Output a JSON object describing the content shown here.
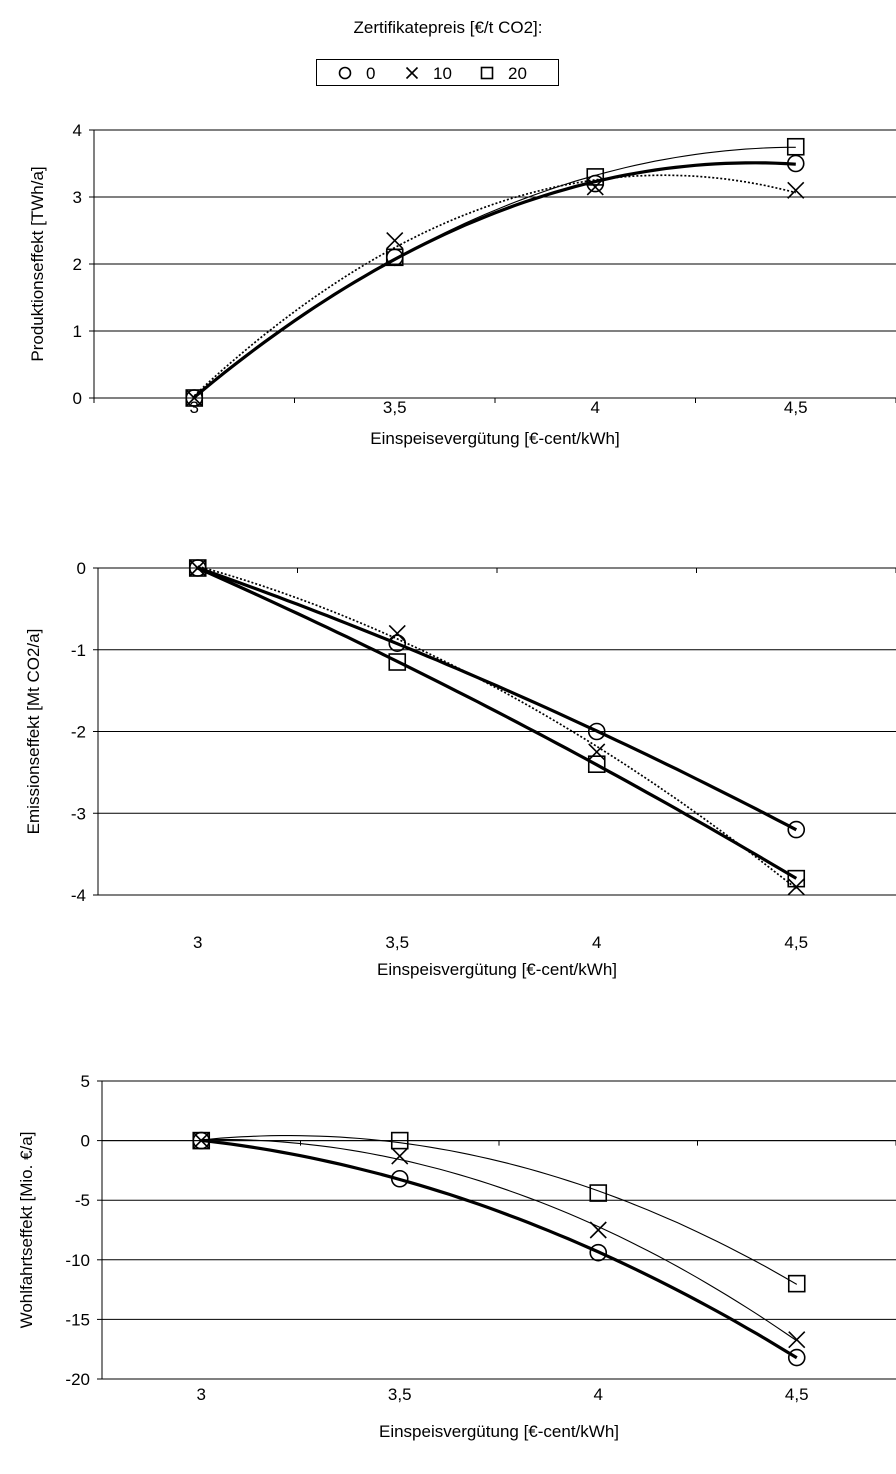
{
  "legend": {
    "title": "Zertifikatepreis [€/t CO2]:",
    "entries": [
      {
        "label": "0",
        "marker": "circle"
      },
      {
        "label": "10",
        "marker": "cross"
      },
      {
        "label": "20",
        "marker": "square"
      }
    ]
  },
  "chart_data": [
    {
      "type": "scatter",
      "xlabel": "Einspeisevergütung  [€-cent/kWh]",
      "ylabel": "Produktionseffekt [TWh/a]",
      "x": [
        3,
        3.5,
        4,
        4.5
      ],
      "xticklabels": [
        "3",
        "3,5",
        "4",
        "4,5"
      ],
      "xlim": [
        2.75,
        4.75
      ],
      "ylim": [
        0,
        4
      ],
      "yticks": [
        0,
        1,
        2,
        3,
        4
      ],
      "grid": "horizontal",
      "series": [
        {
          "name": "0",
          "marker": "circle",
          "values": [
            0,
            2.1,
            3.2,
            3.5
          ],
          "trendline": "thick solid"
        },
        {
          "name": "10",
          "marker": "cross",
          "values": [
            0,
            2.35,
            3.15,
            3.1
          ],
          "trendline": "dotted"
        },
        {
          "name": "20",
          "marker": "square",
          "values": [
            0,
            2.1,
            3.3,
            3.75
          ],
          "trendline": "thin solid"
        }
      ]
    },
    {
      "type": "scatter",
      "xlabel": "Einspeisvergütung  [€-cent/kWh]",
      "ylabel": "Emissionseffekt [Mt CO2/a]",
      "x": [
        3,
        3.5,
        4,
        4.5
      ],
      "xticklabels": [
        "3",
        "3,5",
        "4",
        "4,5"
      ],
      "xlim": [
        2.75,
        4.75
      ],
      "ylim": [
        -4,
        0
      ],
      "yticks": [
        0,
        -1,
        -2,
        -3,
        -4
      ],
      "grid": "horizontal",
      "series": [
        {
          "name": "0",
          "marker": "circle",
          "values": [
            0,
            -0.92,
            -2.0,
            -3.2
          ],
          "trendline": "thick solid"
        },
        {
          "name": "10",
          "marker": "cross",
          "values": [
            0,
            -0.8,
            -2.25,
            -3.9
          ],
          "trendline": "dotted"
        },
        {
          "name": "20",
          "marker": "square",
          "values": [
            0,
            -1.15,
            -2.4,
            -3.8
          ],
          "trendline": "thick solid"
        }
      ]
    },
    {
      "type": "scatter",
      "xlabel": "Einspeisvergütung  [€-cent/kWh]",
      "ylabel": "Wohlfahrtseffekt [Mio. €/a]",
      "x": [
        3,
        3.5,
        4,
        4.5
      ],
      "xticklabels": [
        "3",
        "3,5",
        "4",
        "4,5"
      ],
      "xlim": [
        2.75,
        4.75
      ],
      "ylim": [
        -20,
        5
      ],
      "yticks": [
        5,
        0,
        -5,
        -10,
        -15,
        -20
      ],
      "grid": "horizontal",
      "series": [
        {
          "name": "0",
          "marker": "circle",
          "values": [
            0,
            -3.2,
            -9.4,
            -18.2
          ],
          "trendline": "thick solid"
        },
        {
          "name": "10",
          "marker": "cross",
          "values": [
            0,
            -1.3,
            -7.5,
            -16.7
          ],
          "trendline": "thin solid"
        },
        {
          "name": "20",
          "marker": "square",
          "values": [
            0,
            0,
            -4.4,
            -12
          ],
          "trendline": "thin solid"
        }
      ]
    }
  ]
}
